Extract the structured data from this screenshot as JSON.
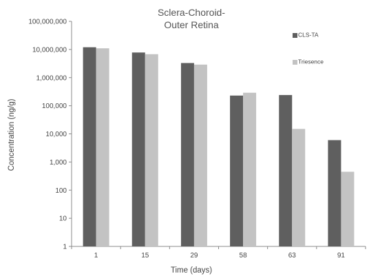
{
  "chart_data": {
    "type": "bar",
    "title_lines": [
      "Sclera-Choroid-",
      "Outer Retina"
    ],
    "xlabel": "Time (days)",
    "ylabel": "Concentration (ng/g)",
    "yscale": "log",
    "ylim": [
      1,
      100000000
    ],
    "yticks": [
      {
        "value": 1,
        "label": "1"
      },
      {
        "value": 10,
        "label": "10"
      },
      {
        "value": 100,
        "label": "100"
      },
      {
        "value": 1000,
        "label": "1,000"
      },
      {
        "value": 10000,
        "label": "10,000"
      },
      {
        "value": 100000,
        "label": "100,000"
      },
      {
        "value": 1000000,
        "label": "1,000,000"
      },
      {
        "value": 10000000,
        "label": "10,000,000"
      },
      {
        "value": 100000000,
        "label": "100,000,000"
      }
    ],
    "categories": [
      "1",
      "15",
      "29",
      "58",
      "63",
      "91"
    ],
    "series": [
      {
        "name": "CLS-TA",
        "color": "#5f5f5f",
        "values": [
          12000000,
          7800000,
          3300000,
          230000,
          240000,
          6000
        ]
      },
      {
        "name": "Triesence",
        "color": "#c3c3c3",
        "values": [
          11000000,
          6800000,
          2900000,
          290000,
          15000,
          450
        ]
      }
    ],
    "grid": false,
    "legend_position": "top-right"
  }
}
